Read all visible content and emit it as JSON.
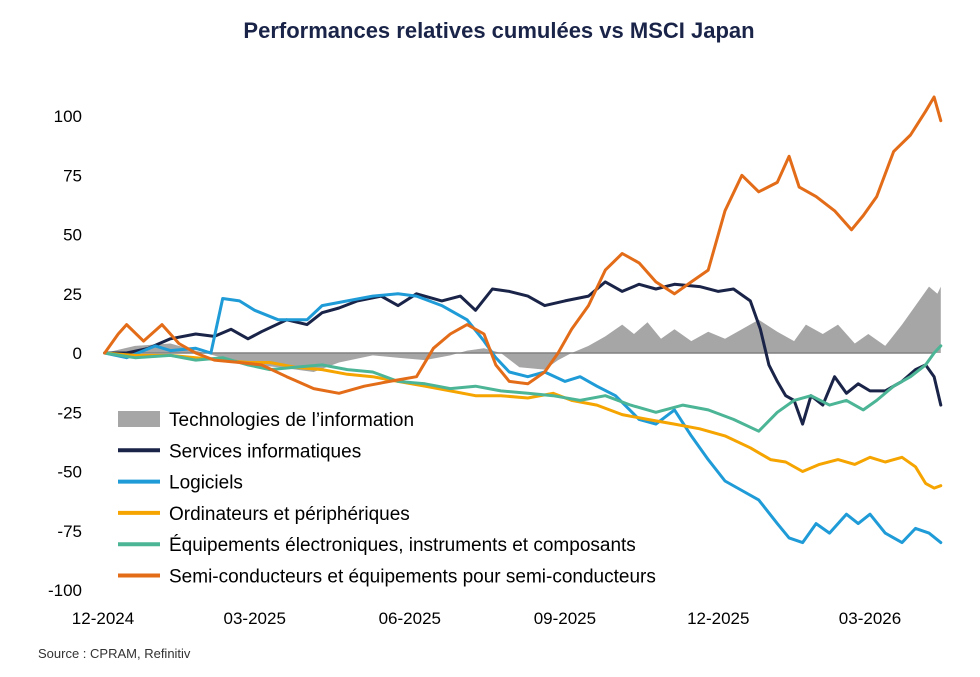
{
  "chart_data": {
    "type": "line",
    "title": "Performances relatives cumulées vs MSCI Japan",
    "source": "Source : CPRAM, Refinitiv",
    "x_start": "2024-12-01",
    "x_end": "2026-04-15",
    "x_ticks": [
      {
        "date": "2024-12-01",
        "label": "12-2024"
      },
      {
        "date": "2025-03-01",
        "label": "03-2025"
      },
      {
        "date": "2025-06-01",
        "label": "06-2025"
      },
      {
        "date": "2025-09-01",
        "label": "09-2025"
      },
      {
        "date": "2025-12-01",
        "label": "12-2025"
      },
      {
        "date": "2026-03-01",
        "label": "03-2026"
      }
    ],
    "ylim": [
      -100,
      110
    ],
    "y_ticks": [
      100,
      75,
      50,
      25,
      0,
      -25,
      -50,
      -75,
      -100
    ],
    "zero_line": true,
    "legend_position": "bottom-left",
    "series": [
      {
        "name": "Technologies de l’information",
        "type": "area",
        "color": "#a6a6a6",
        "points": [
          [
            "2024-12-02",
            0
          ],
          [
            "2024-12-20",
            3
          ],
          [
            "2025-01-10",
            4
          ],
          [
            "2025-01-25",
            1
          ],
          [
            "2025-02-10",
            -2
          ],
          [
            "2025-02-28",
            -5
          ],
          [
            "2025-03-15",
            -6
          ],
          [
            "2025-04-05",
            -8
          ],
          [
            "2025-04-20",
            -4
          ],
          [
            "2025-05-10",
            -1
          ],
          [
            "2025-05-25",
            -2
          ],
          [
            "2025-06-10",
            -3
          ],
          [
            "2025-06-25",
            -1
          ],
          [
            "2025-07-05",
            1
          ],
          [
            "2025-07-15",
            2
          ],
          [
            "2025-07-25",
            0
          ],
          [
            "2025-08-05",
            -6
          ],
          [
            "2025-08-20",
            -7
          ],
          [
            "2025-08-28",
            -3
          ],
          [
            "2025-09-05",
            0
          ],
          [
            "2025-09-15",
            3
          ],
          [
            "2025-09-25",
            7
          ],
          [
            "2025-10-05",
            12
          ],
          [
            "2025-10-12",
            8
          ],
          [
            "2025-10-20",
            13
          ],
          [
            "2025-10-28",
            6
          ],
          [
            "2025-11-05",
            10
          ],
          [
            "2025-11-15",
            5
          ],
          [
            "2025-11-25",
            9
          ],
          [
            "2025-12-05",
            6
          ],
          [
            "2025-12-15",
            10
          ],
          [
            "2025-12-25",
            14
          ],
          [
            "2026-01-05",
            9
          ],
          [
            "2026-01-15",
            5
          ],
          [
            "2026-01-22",
            12
          ],
          [
            "2026-02-01",
            8
          ],
          [
            "2026-02-10",
            12
          ],
          [
            "2026-02-20",
            4
          ],
          [
            "2026-02-28",
            8
          ],
          [
            "2026-03-10",
            3
          ],
          [
            "2026-03-20",
            12
          ],
          [
            "2026-03-28",
            20
          ],
          [
            "2026-04-05",
            28
          ],
          [
            "2026-04-10",
            25
          ],
          [
            "2026-04-12",
            28
          ]
        ]
      },
      {
        "name": "Services informatiques",
        "type": "line",
        "color": "#1a2448",
        "points": [
          [
            "2024-12-02",
            0
          ],
          [
            "2024-12-15",
            0
          ],
          [
            "2024-12-28",
            2
          ],
          [
            "2025-01-10",
            6
          ],
          [
            "2025-01-25",
            8
          ],
          [
            "2025-02-05",
            7
          ],
          [
            "2025-02-15",
            10
          ],
          [
            "2025-02-25",
            6
          ],
          [
            "2025-03-05",
            9
          ],
          [
            "2025-03-20",
            14
          ],
          [
            "2025-04-01",
            12
          ],
          [
            "2025-04-10",
            17
          ],
          [
            "2025-04-20",
            19
          ],
          [
            "2025-05-01",
            22
          ],
          [
            "2025-05-15",
            24
          ],
          [
            "2025-05-25",
            20
          ],
          [
            "2025-06-05",
            25
          ],
          [
            "2025-06-20",
            22
          ],
          [
            "2025-07-01",
            24
          ],
          [
            "2025-07-10",
            18
          ],
          [
            "2025-07-20",
            27
          ],
          [
            "2025-07-30",
            26
          ],
          [
            "2025-08-10",
            24
          ],
          [
            "2025-08-20",
            20
          ],
          [
            "2025-09-01",
            22
          ],
          [
            "2025-09-15",
            24
          ],
          [
            "2025-09-25",
            30
          ],
          [
            "2025-10-05",
            26
          ],
          [
            "2025-10-15",
            29
          ],
          [
            "2025-10-25",
            27
          ],
          [
            "2025-11-05",
            29
          ],
          [
            "2025-11-20",
            28
          ],
          [
            "2025-12-01",
            26
          ],
          [
            "2025-12-10",
            27
          ],
          [
            "2025-12-20",
            22
          ],
          [
            "2025-12-26",
            10
          ],
          [
            "2025-12-31",
            -5
          ],
          [
            "2026-01-05",
            -12
          ],
          [
            "2026-01-10",
            -18
          ],
          [
            "2026-01-15",
            -20
          ],
          [
            "2026-01-20",
            -30
          ],
          [
            "2026-01-25",
            -18
          ],
          [
            "2026-02-01",
            -22
          ],
          [
            "2026-02-08",
            -10
          ],
          [
            "2026-02-15",
            -17
          ],
          [
            "2026-02-22",
            -13
          ],
          [
            "2026-03-01",
            -16
          ],
          [
            "2026-03-10",
            -16
          ],
          [
            "2026-03-20",
            -12
          ],
          [
            "2026-03-28",
            -7
          ],
          [
            "2026-04-03",
            -5
          ],
          [
            "2026-04-08",
            -10
          ],
          [
            "2026-04-12",
            -22
          ]
        ]
      },
      {
        "name": "Logiciels",
        "type": "line",
        "color": "#1f9bd7",
        "points": [
          [
            "2024-12-02",
            0
          ],
          [
            "2024-12-15",
            -2
          ],
          [
            "2025-01-01",
            3
          ],
          [
            "2025-01-10",
            1
          ],
          [
            "2025-01-25",
            2
          ],
          [
            "2025-02-03",
            0
          ],
          [
            "2025-02-10",
            23
          ],
          [
            "2025-02-20",
            22
          ],
          [
            "2025-03-01",
            18
          ],
          [
            "2025-03-15",
            14
          ],
          [
            "2025-04-01",
            14
          ],
          [
            "2025-04-10",
            20
          ],
          [
            "2025-04-25",
            22
          ],
          [
            "2025-05-10",
            24
          ],
          [
            "2025-05-25",
            25
          ],
          [
            "2025-06-05",
            24
          ],
          [
            "2025-06-20",
            20
          ],
          [
            "2025-07-05",
            14
          ],
          [
            "2025-07-15",
            5
          ],
          [
            "2025-07-22",
            -2
          ],
          [
            "2025-07-30",
            -8
          ],
          [
            "2025-08-10",
            -10
          ],
          [
            "2025-08-20",
            -8
          ],
          [
            "2025-09-01",
            -12
          ],
          [
            "2025-09-10",
            -10
          ],
          [
            "2025-09-20",
            -14
          ],
          [
            "2025-10-01",
            -18
          ],
          [
            "2025-10-15",
            -28
          ],
          [
            "2025-10-25",
            -30
          ],
          [
            "2025-11-05",
            -24
          ],
          [
            "2025-11-15",
            -35
          ],
          [
            "2025-11-25",
            -45
          ],
          [
            "2025-12-05",
            -54
          ],
          [
            "2025-12-15",
            -58
          ],
          [
            "2025-12-25",
            -62
          ],
          [
            "2026-01-05",
            -72
          ],
          [
            "2026-01-12",
            -78
          ],
          [
            "2026-01-20",
            -80
          ],
          [
            "2026-01-28",
            -72
          ],
          [
            "2026-02-05",
            -76
          ],
          [
            "2026-02-15",
            -68
          ],
          [
            "2026-02-22",
            -72
          ],
          [
            "2026-03-01",
            -68
          ],
          [
            "2026-03-10",
            -76
          ],
          [
            "2026-03-20",
            -80
          ],
          [
            "2026-03-28",
            -74
          ],
          [
            "2026-04-05",
            -76
          ],
          [
            "2026-04-12",
            -80
          ]
        ]
      },
      {
        "name": "Ordinateurs et périphériques",
        "type": "line",
        "color": "#f5a400",
        "points": [
          [
            "2024-12-02",
            0
          ],
          [
            "2024-12-20",
            -1
          ],
          [
            "2025-01-10",
            -1
          ],
          [
            "2025-01-25",
            -2
          ],
          [
            "2025-02-10",
            -3
          ],
          [
            "2025-02-25",
            -4
          ],
          [
            "2025-03-10",
            -4
          ],
          [
            "2025-03-25",
            -6
          ],
          [
            "2025-04-10",
            -7
          ],
          [
            "2025-04-25",
            -9
          ],
          [
            "2025-05-10",
            -10
          ],
          [
            "2025-05-25",
            -12
          ],
          [
            "2025-06-10",
            -14
          ],
          [
            "2025-06-25",
            -16
          ],
          [
            "2025-07-10",
            -18
          ],
          [
            "2025-07-25",
            -18
          ],
          [
            "2025-08-10",
            -19
          ],
          [
            "2025-08-25",
            -17
          ],
          [
            "2025-09-05",
            -20
          ],
          [
            "2025-09-20",
            -22
          ],
          [
            "2025-10-05",
            -26
          ],
          [
            "2025-10-20",
            -28
          ],
          [
            "2025-11-05",
            -30
          ],
          [
            "2025-11-20",
            -32
          ],
          [
            "2025-12-05",
            -35
          ],
          [
            "2025-12-20",
            -40
          ],
          [
            "2026-01-01",
            -45
          ],
          [
            "2026-01-10",
            -46
          ],
          [
            "2026-01-20",
            -50
          ],
          [
            "2026-01-30",
            -47
          ],
          [
            "2026-02-10",
            -45
          ],
          [
            "2026-02-20",
            -47
          ],
          [
            "2026-03-01",
            -44
          ],
          [
            "2026-03-10",
            -46
          ],
          [
            "2026-03-20",
            -44
          ],
          [
            "2026-03-28",
            -48
          ],
          [
            "2026-04-03",
            -55
          ],
          [
            "2026-04-08",
            -57
          ],
          [
            "2026-04-12",
            -56
          ]
        ]
      },
      {
        "name": "Équipements électroniques, instruments et composants",
        "type": "line",
        "color": "#4cb596",
        "points": [
          [
            "2024-12-02",
            0
          ],
          [
            "2024-12-20",
            -2
          ],
          [
            "2025-01-10",
            -1
          ],
          [
            "2025-01-25",
            -3
          ],
          [
            "2025-02-10",
            -2
          ],
          [
            "2025-02-25",
            -5
          ],
          [
            "2025-03-10",
            -7
          ],
          [
            "2025-03-25",
            -6
          ],
          [
            "2025-04-10",
            -5
          ],
          [
            "2025-04-25",
            -7
          ],
          [
            "2025-05-10",
            -8
          ],
          [
            "2025-05-25",
            -12
          ],
          [
            "2025-06-10",
            -13
          ],
          [
            "2025-06-25",
            -15
          ],
          [
            "2025-07-10",
            -14
          ],
          [
            "2025-07-25",
            -16
          ],
          [
            "2025-08-10",
            -17
          ],
          [
            "2025-08-25",
            -18
          ],
          [
            "2025-09-10",
            -20
          ],
          [
            "2025-09-25",
            -18
          ],
          [
            "2025-10-10",
            -22
          ],
          [
            "2025-10-25",
            -25
          ],
          [
            "2025-11-10",
            -22
          ],
          [
            "2025-11-25",
            -24
          ],
          [
            "2025-12-10",
            -28
          ],
          [
            "2025-12-25",
            -33
          ],
          [
            "2026-01-05",
            -25
          ],
          [
            "2026-01-15",
            -20
          ],
          [
            "2026-01-25",
            -18
          ],
          [
            "2026-02-05",
            -22
          ],
          [
            "2026-02-15",
            -20
          ],
          [
            "2026-02-25",
            -24
          ],
          [
            "2026-03-05",
            -20
          ],
          [
            "2026-03-15",
            -14
          ],
          [
            "2026-03-25",
            -10
          ],
          [
            "2026-04-03",
            -5
          ],
          [
            "2026-04-08",
            0
          ],
          [
            "2026-04-12",
            3
          ]
        ]
      },
      {
        "name": "Semi-conducteurs et équipements pour semi-conducteurs",
        "type": "line",
        "color": "#e36c19",
        "points": [
          [
            "2024-12-02",
            0
          ],
          [
            "2024-12-10",
            8
          ],
          [
            "2024-12-15",
            12
          ],
          [
            "2024-12-25",
            5
          ],
          [
            "2025-01-05",
            12
          ],
          [
            "2025-01-15",
            4
          ],
          [
            "2025-01-25",
            0
          ],
          [
            "2025-02-05",
            -3
          ],
          [
            "2025-02-20",
            -4
          ],
          [
            "2025-03-05",
            -5
          ],
          [
            "2025-03-20",
            -10
          ],
          [
            "2025-04-05",
            -15
          ],
          [
            "2025-04-20",
            -17
          ],
          [
            "2025-05-05",
            -14
          ],
          [
            "2025-05-20",
            -12
          ],
          [
            "2025-06-05",
            -10
          ],
          [
            "2025-06-15",
            2
          ],
          [
            "2025-06-25",
            8
          ],
          [
            "2025-07-05",
            12
          ],
          [
            "2025-07-15",
            8
          ],
          [
            "2025-07-22",
            -5
          ],
          [
            "2025-07-30",
            -12
          ],
          [
            "2025-08-10",
            -13
          ],
          [
            "2025-08-20",
            -8
          ],
          [
            "2025-08-28",
            0
          ],
          [
            "2025-09-05",
            10
          ],
          [
            "2025-09-15",
            20
          ],
          [
            "2025-09-25",
            35
          ],
          [
            "2025-10-05",
            42
          ],
          [
            "2025-10-15",
            38
          ],
          [
            "2025-10-25",
            30
          ],
          [
            "2025-11-05",
            25
          ],
          [
            "2025-11-15",
            30
          ],
          [
            "2025-11-25",
            35
          ],
          [
            "2025-12-05",
            60
          ],
          [
            "2025-12-15",
            75
          ],
          [
            "2025-12-25",
            68
          ],
          [
            "2026-01-05",
            72
          ],
          [
            "2026-01-12",
            83
          ],
          [
            "2026-01-18",
            70
          ],
          [
            "2026-01-28",
            66
          ],
          [
            "2026-02-08",
            60
          ],
          [
            "2026-02-18",
            52
          ],
          [
            "2026-02-25",
            58
          ],
          [
            "2026-03-05",
            66
          ],
          [
            "2026-03-15",
            85
          ],
          [
            "2026-03-25",
            92
          ],
          [
            "2026-04-03",
            102
          ],
          [
            "2026-04-08",
            108
          ],
          [
            "2026-04-12",
            98
          ]
        ]
      }
    ]
  }
}
